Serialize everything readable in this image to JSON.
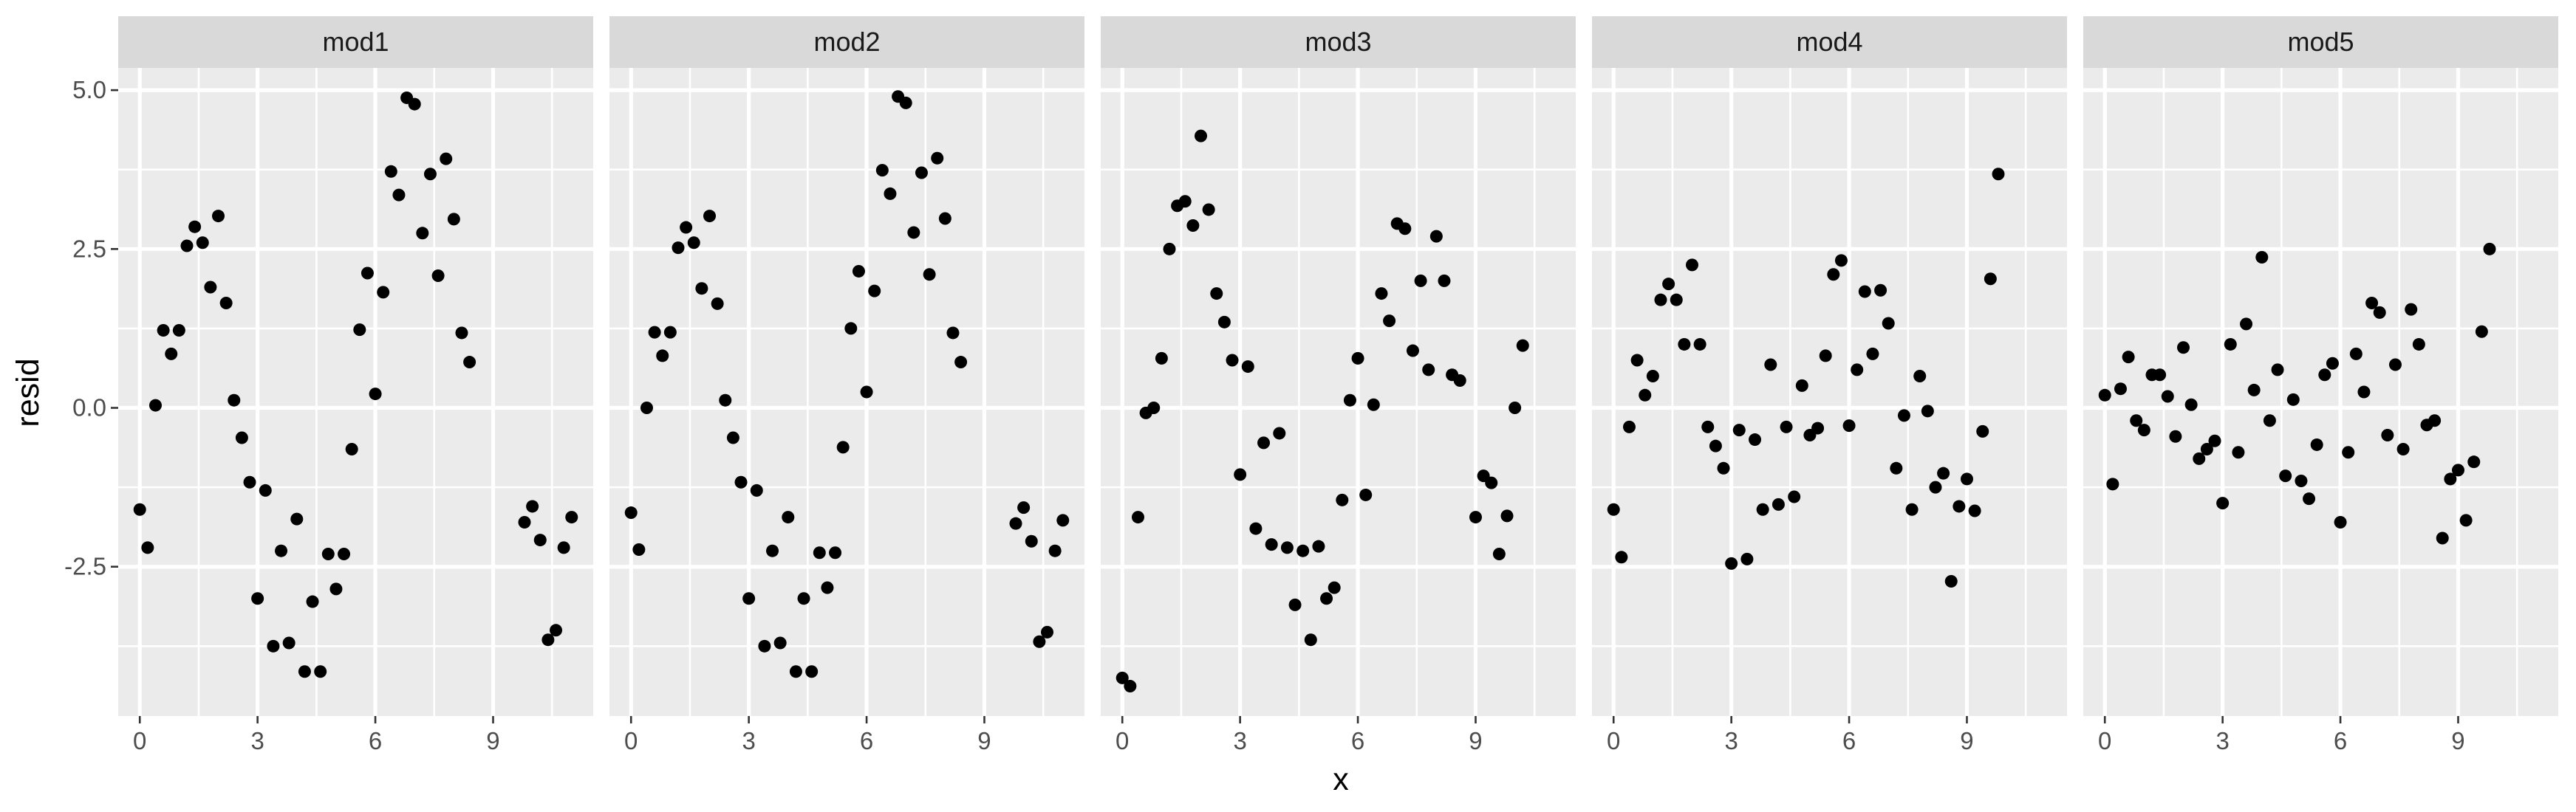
{
  "chart_data": {
    "type": "scatter",
    "facet_variable": "model",
    "xlabel": "x",
    "ylabel": "resid",
    "xlim": [
      -0.55,
      11.55
    ],
    "ylim": [
      -4.85,
      5.35
    ],
    "x_ticks": [
      0,
      3,
      6,
      9
    ],
    "y_ticks": [
      -2.5,
      0.0,
      2.5,
      5.0
    ],
    "x_tick_labels": [
      "0",
      "3",
      "6",
      "9"
    ],
    "y_tick_labels": [
      "-2.5",
      "0.0",
      "2.5",
      "5.0"
    ],
    "grid": true,
    "point_color": "#000000",
    "panel_background": "#ebebeb",
    "strip_background": "#d9d9d9",
    "panels": [
      {
        "name": "mod1",
        "points": [
          [
            0.0,
            -1.6
          ],
          [
            0.2,
            -2.2
          ],
          [
            0.4,
            0.04
          ],
          [
            0.6,
            1.22
          ],
          [
            0.8,
            0.85
          ],
          [
            1.0,
            1.22
          ],
          [
            1.2,
            2.55
          ],
          [
            1.4,
            2.85
          ],
          [
            1.6,
            2.6
          ],
          [
            1.8,
            1.9
          ],
          [
            2.0,
            3.02
          ],
          [
            2.2,
            1.65
          ],
          [
            2.4,
            0.12
          ],
          [
            2.6,
            -0.47
          ],
          [
            2.8,
            -1.17
          ],
          [
            3.0,
            -3.0
          ],
          [
            3.2,
            -1.3
          ],
          [
            3.4,
            -3.75
          ],
          [
            3.6,
            -2.25
          ],
          [
            3.8,
            -3.7
          ],
          [
            4.0,
            -1.75
          ],
          [
            4.2,
            -4.15
          ],
          [
            4.4,
            -3.05
          ],
          [
            4.6,
            -4.15
          ],
          [
            4.8,
            -2.3
          ],
          [
            5.0,
            -2.85
          ],
          [
            5.2,
            -2.3
          ],
          [
            5.4,
            -0.65
          ],
          [
            5.6,
            1.23
          ],
          [
            5.8,
            2.12
          ],
          [
            6.0,
            0.22
          ],
          [
            6.2,
            1.82
          ],
          [
            6.4,
            3.72
          ],
          [
            6.6,
            3.35
          ],
          [
            6.8,
            4.88
          ],
          [
            7.0,
            4.78
          ],
          [
            7.2,
            2.75
          ],
          [
            7.4,
            3.68
          ],
          [
            7.6,
            2.08
          ],
          [
            7.8,
            3.92
          ],
          [
            8.0,
            2.97
          ],
          [
            8.2,
            1.18
          ],
          [
            8.4,
            0.72
          ],
          [
            9.8,
            -1.8
          ],
          [
            10.0,
            -1.55
          ],
          [
            10.2,
            -2.08
          ],
          [
            10.4,
            -3.65
          ],
          [
            10.6,
            -3.5
          ],
          [
            10.8,
            -2.2
          ],
          [
            11.0,
            -1.72
          ]
        ]
      },
      {
        "name": "mod2",
        "points": [
          [
            0.0,
            -1.65
          ],
          [
            0.2,
            -2.23
          ],
          [
            0.4,
            0.0
          ],
          [
            0.6,
            1.19
          ],
          [
            0.8,
            0.82
          ],
          [
            1.0,
            1.19
          ],
          [
            1.2,
            2.52
          ],
          [
            1.4,
            2.84
          ],
          [
            1.6,
            2.6
          ],
          [
            1.8,
            1.88
          ],
          [
            2.0,
            3.02
          ],
          [
            2.2,
            1.64
          ],
          [
            2.4,
            0.12
          ],
          [
            2.6,
            -0.47
          ],
          [
            2.8,
            -1.17
          ],
          [
            3.0,
            -3.0
          ],
          [
            3.2,
            -1.3
          ],
          [
            3.4,
            -3.75
          ],
          [
            3.6,
            -2.25
          ],
          [
            3.8,
            -3.7
          ],
          [
            4.0,
            -1.72
          ],
          [
            4.2,
            -4.15
          ],
          [
            4.4,
            -3.0
          ],
          [
            4.6,
            -4.15
          ],
          [
            4.8,
            -2.28
          ],
          [
            5.0,
            -2.83
          ],
          [
            5.2,
            -2.28
          ],
          [
            5.4,
            -0.62
          ],
          [
            5.6,
            1.25
          ],
          [
            5.8,
            2.15
          ],
          [
            6.0,
            0.25
          ],
          [
            6.2,
            1.84
          ],
          [
            6.4,
            3.74
          ],
          [
            6.6,
            3.37
          ],
          [
            6.8,
            4.9
          ],
          [
            7.0,
            4.8
          ],
          [
            7.2,
            2.76
          ],
          [
            7.4,
            3.7
          ],
          [
            7.6,
            2.1
          ],
          [
            7.8,
            3.93
          ],
          [
            8.0,
            2.98
          ],
          [
            8.2,
            1.18
          ],
          [
            8.4,
            0.72
          ],
          [
            9.8,
            -1.82
          ],
          [
            10.0,
            -1.57
          ],
          [
            10.2,
            -2.1
          ],
          [
            10.4,
            -3.68
          ],
          [
            10.6,
            -3.53
          ],
          [
            10.8,
            -2.25
          ],
          [
            11.0,
            -1.77
          ]
        ]
      },
      {
        "name": "mod3",
        "points": [
          [
            0.0,
            -4.25
          ],
          [
            0.2,
            -4.38
          ],
          [
            0.4,
            -1.72
          ],
          [
            0.6,
            -0.08
          ],
          [
            0.8,
            0.0
          ],
          [
            1.0,
            0.78
          ],
          [
            1.2,
            2.5
          ],
          [
            1.4,
            3.18
          ],
          [
            1.6,
            3.25
          ],
          [
            1.8,
            2.87
          ],
          [
            2.0,
            4.28
          ],
          [
            2.2,
            3.12
          ],
          [
            2.4,
            1.8
          ],
          [
            2.6,
            1.35
          ],
          [
            2.8,
            0.75
          ],
          [
            3.0,
            -1.05
          ],
          [
            3.2,
            0.65
          ],
          [
            3.4,
            -1.9
          ],
          [
            3.6,
            -0.55
          ],
          [
            3.8,
            -2.15
          ],
          [
            4.0,
            -0.4
          ],
          [
            4.2,
            -2.2
          ],
          [
            4.4,
            -3.1
          ],
          [
            4.6,
            -2.25
          ],
          [
            4.8,
            -3.65
          ],
          [
            5.0,
            -2.18
          ],
          [
            5.2,
            -3.0
          ],
          [
            5.4,
            -2.83
          ],
          [
            5.6,
            -1.45
          ],
          [
            5.8,
            0.12
          ],
          [
            6.0,
            0.78
          ],
          [
            6.2,
            -1.37
          ],
          [
            6.4,
            0.05
          ],
          [
            6.6,
            1.8
          ],
          [
            6.8,
            1.37
          ],
          [
            7.0,
            2.9
          ],
          [
            7.2,
            2.82
          ],
          [
            7.4,
            0.9
          ],
          [
            7.6,
            2.0
          ],
          [
            7.8,
            0.6
          ],
          [
            8.0,
            2.7
          ],
          [
            8.2,
            2.0
          ],
          [
            8.4,
            0.52
          ],
          [
            8.6,
            0.43
          ],
          [
            9.0,
            -1.72
          ],
          [
            9.2,
            -1.07
          ],
          [
            9.4,
            -1.18
          ],
          [
            9.6,
            -2.3
          ],
          [
            9.8,
            -1.7
          ],
          [
            10.0,
            0.0
          ],
          [
            10.2,
            0.98
          ]
        ]
      },
      {
        "name": "mod4",
        "points": [
          [
            0.0,
            -1.6
          ],
          [
            0.2,
            -2.35
          ],
          [
            0.4,
            -0.3
          ],
          [
            0.6,
            0.75
          ],
          [
            0.8,
            0.2
          ],
          [
            1.0,
            0.5
          ],
          [
            1.2,
            1.7
          ],
          [
            1.4,
            1.95
          ],
          [
            1.6,
            1.7
          ],
          [
            1.8,
            1.0
          ],
          [
            2.0,
            2.25
          ],
          [
            2.2,
            1.0
          ],
          [
            2.4,
            -0.3
          ],
          [
            2.6,
            -0.6
          ],
          [
            2.8,
            -0.95
          ],
          [
            3.0,
            -2.45
          ],
          [
            3.2,
            -0.35
          ],
          [
            3.4,
            -2.38
          ],
          [
            3.6,
            -0.5
          ],
          [
            3.8,
            -1.6
          ],
          [
            4.0,
            0.68
          ],
          [
            4.2,
            -1.52
          ],
          [
            4.4,
            -0.3
          ],
          [
            4.6,
            -1.4
          ],
          [
            4.8,
            0.35
          ],
          [
            5.0,
            -0.43
          ],
          [
            5.2,
            -0.32
          ],
          [
            5.4,
            0.82
          ],
          [
            5.6,
            2.1
          ],
          [
            5.8,
            2.32
          ],
          [
            6.0,
            -0.28
          ],
          [
            6.2,
            0.6
          ],
          [
            6.4,
            1.83
          ],
          [
            6.6,
            0.85
          ],
          [
            6.8,
            1.85
          ],
          [
            7.0,
            1.33
          ],
          [
            7.2,
            -0.95
          ],
          [
            7.4,
            -0.12
          ],
          [
            7.6,
            -1.6
          ],
          [
            7.8,
            0.5
          ],
          [
            8.0,
            -0.05
          ],
          [
            8.2,
            -1.25
          ],
          [
            8.4,
            -1.03
          ],
          [
            8.6,
            -2.73
          ],
          [
            8.8,
            -1.55
          ],
          [
            9.0,
            -1.12
          ],
          [
            9.2,
            -1.62
          ],
          [
            9.4,
            -0.37
          ],
          [
            9.6,
            2.03
          ],
          [
            9.8,
            3.68
          ]
        ]
      },
      {
        "name": "mod5",
        "points": [
          [
            0.0,
            0.2
          ],
          [
            0.2,
            -1.2
          ],
          [
            0.4,
            0.3
          ],
          [
            0.6,
            0.8
          ],
          [
            0.8,
            -0.2
          ],
          [
            1.0,
            -0.35
          ],
          [
            1.2,
            0.52
          ],
          [
            1.4,
            0.52
          ],
          [
            1.6,
            0.18
          ],
          [
            1.8,
            -0.45
          ],
          [
            2.0,
            0.95
          ],
          [
            2.2,
            0.05
          ],
          [
            2.4,
            -0.8
          ],
          [
            2.6,
            -0.65
          ],
          [
            2.8,
            -0.52
          ],
          [
            3.0,
            -1.5
          ],
          [
            3.2,
            1.0
          ],
          [
            3.4,
            -0.7
          ],
          [
            3.6,
            1.32
          ],
          [
            3.8,
            0.28
          ],
          [
            4.0,
            2.37
          ],
          [
            4.2,
            -0.2
          ],
          [
            4.4,
            0.6
          ],
          [
            4.6,
            -1.07
          ],
          [
            4.8,
            0.13
          ],
          [
            5.0,
            -1.15
          ],
          [
            5.2,
            -1.43
          ],
          [
            5.4,
            -0.58
          ],
          [
            5.6,
            0.52
          ],
          [
            5.8,
            0.7
          ],
          [
            6.0,
            -1.8
          ],
          [
            6.2,
            -0.7
          ],
          [
            6.4,
            0.85
          ],
          [
            6.6,
            0.25
          ],
          [
            6.8,
            1.65
          ],
          [
            7.0,
            1.5
          ],
          [
            7.2,
            -0.43
          ],
          [
            7.4,
            0.68
          ],
          [
            7.6,
            -0.65
          ],
          [
            7.8,
            1.55
          ],
          [
            8.0,
            1.0
          ],
          [
            8.2,
            -0.27
          ],
          [
            8.4,
            -0.2
          ],
          [
            8.6,
            -2.05
          ],
          [
            8.8,
            -1.12
          ],
          [
            9.0,
            -0.98
          ],
          [
            9.2,
            -1.77
          ],
          [
            9.4,
            -0.85
          ],
          [
            9.6,
            1.2
          ],
          [
            9.8,
            2.5
          ]
        ]
      }
    ]
  }
}
